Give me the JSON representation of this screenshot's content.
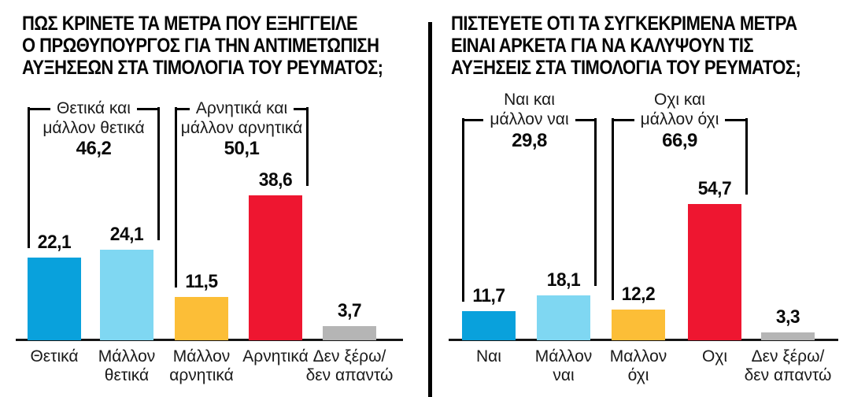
{
  "page": {
    "background": "#ffffff",
    "divider_color": "#000000",
    "axis_color": "#161616",
    "text_color": "#1a1a1a"
  },
  "chart_data": [
    {
      "type": "bar",
      "title": "ΠΩΣ ΚΡΙΝΕΤΕ ΤΑ ΜΕΤΡΑ ΠΟΥ ΕΞΗΓΓΕΙΛΕ Ο ΠΡΩΘΥΠΟΥΡΓΟΣ ΓΙΑ ΤΗΝ ΑΝΤΙΜΕΤΩΠΙΣΗ ΑΥΞΗΣΕΩΝ ΣΤΑ ΤΙΜΟΛΟΓΙΑ ΤΟΥ ΡΕΥΜΑΤΟΣ;",
      "title_lines": [
        "ΠΩΣ ΚΡΙΝΕΤΕ ΤΑ ΜΕΤΡΑ ΠΟΥ ΕΞΗΓΓΕΙΛΕ",
        "Ο ΠΡΩΘΥΠΟΥΡΓΟΣ ΓΙΑ ΤΗΝ ΑΝΤΙΜΕΤΩΠΙΣΗ",
        "ΑΥΞΗΣΕΩΝ ΣΤΑ ΤΙΜΟΛΟΓΙΑ ΤΟΥ ΡΕΥΜΑΤΟΣ;"
      ],
      "categories": [
        "Θετικά",
        "Μάλλον\nθετικά",
        "Μάλλον\nαρνητικά",
        "Αρνητικά",
        "Δεν ξέρω/\nδεν απαντώ"
      ],
      "values": [
        22.1,
        24.1,
        11.5,
        38.6,
        3.7
      ],
      "bar_colors": [
        "#09a1dc",
        "#7fd7f2",
        "#fcbe37",
        "#ee1630",
        "#b5b5b5"
      ],
      "ylim": [
        0,
        40
      ],
      "grid": false,
      "legend": null,
      "decimal_separator": ",",
      "groups": [
        {
          "label_lines": [
            "Θετικά και",
            "μάλλον θετικά"
          ],
          "line_index": 0,
          "value": 46.2,
          "columns": [
            0,
            1
          ]
        },
        {
          "label_lines": [
            "Αρνητικά και",
            "μάλλον αρνητικά"
          ],
          "line_index": 0,
          "value": 50.1,
          "columns": [
            2,
            3
          ]
        }
      ]
    },
    {
      "type": "bar",
      "title": "ΠΙΣΤΕΥΕΤΕ ΟΤΙ ΤΑ ΣΥΓΚΕΚΡΙΜΕΝΑ ΜΕΤΡΑ ΕΙΝΑΙ ΑΡΚΕΤΑ ΓΙΑ ΝΑ ΚΑΛΥΨΟΥΝ ΤΙΣ ΑΥΞΗΣΕΙΣ ΣΤΑ ΤΙΜΟΛΟΓΙΑ ΤΟΥ ΡΕΥΜΑΤΟΣ;",
      "title_lines": [
        "ΠΙΣΤΕΥΕΤΕ ΟΤΙ ΤΑ ΣΥΓΚΕΚΡΙΜΕΝΑ ΜΕΤΡΑ",
        "ΕΙΝΑΙ ΑΡΚΕΤΑ ΓΙΑ ΝΑ ΚΑΛΥΨΟΥΝ ΤΙΣ",
        "ΑΥΞΗΣΕΙΣ ΣΤΑ ΤΙΜΟΛΟΓΙΑ ΤΟΥ ΡΕΥΜΑΤΟΣ;"
      ],
      "categories": [
        "Ναι",
        "Μάλλον\nναι",
        "Μαλλον\nόχι",
        "Οχι",
        "Δεν ξέρω/\nδεν απαντώ"
      ],
      "values": [
        11.7,
        18.1,
        12.2,
        54.7,
        3.3
      ],
      "bar_colors": [
        "#09a1dc",
        "#7fd7f2",
        "#fcbe37",
        "#ee1630",
        "#b5b5b5"
      ],
      "ylim": [
        0,
        60
      ],
      "grid": false,
      "legend": null,
      "decimal_separator": ",",
      "groups": [
        {
          "label_lines": [
            "Ναι και",
            "μάλλον ναι"
          ],
          "line_index": 1,
          "value": 29.8,
          "columns": [
            0,
            1
          ]
        },
        {
          "label_lines": [
            "Οχι και",
            "μάλλον όχι"
          ],
          "line_index": 1,
          "value": 66.9,
          "columns": [
            2,
            3
          ]
        }
      ]
    }
  ]
}
